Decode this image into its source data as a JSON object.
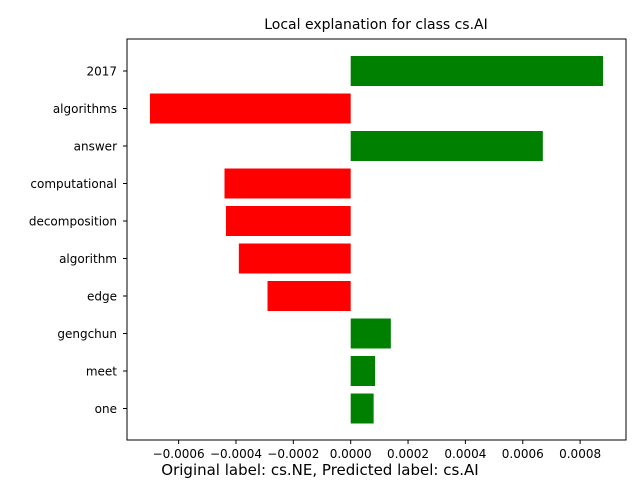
{
  "chart_data": {
    "type": "bar",
    "orientation": "horizontal",
    "title": "Local explanation for class cs.AI",
    "caption": "Original label: cs.NE, Predicted label: cs.AI",
    "categories": [
      "2017",
      "algorithms",
      "answer",
      "computational",
      "decomposition",
      "algorithm",
      "edge",
      "gengchun",
      "meet",
      "one"
    ],
    "values": [
      0.00088,
      -0.0007,
      0.00067,
      -0.00044,
      -0.000435,
      -0.00039,
      -0.00029,
      0.00014,
      8.5e-05,
      8e-05
    ],
    "xlim": [
      -0.00078,
      0.00096
    ],
    "xticks": [
      -0.0006,
      -0.0004,
      -0.0002,
      0.0,
      0.0002,
      0.0004,
      0.0006,
      0.0008
    ],
    "xtick_labels": [
      "−0.0006",
      "−0.0004",
      "−0.0002",
      "0.0000",
      "0.0002",
      "0.0004",
      "0.0006",
      "0.0008"
    ],
    "positive_color": "#008000",
    "negative_color": "#ff0000",
    "grid": false
  }
}
